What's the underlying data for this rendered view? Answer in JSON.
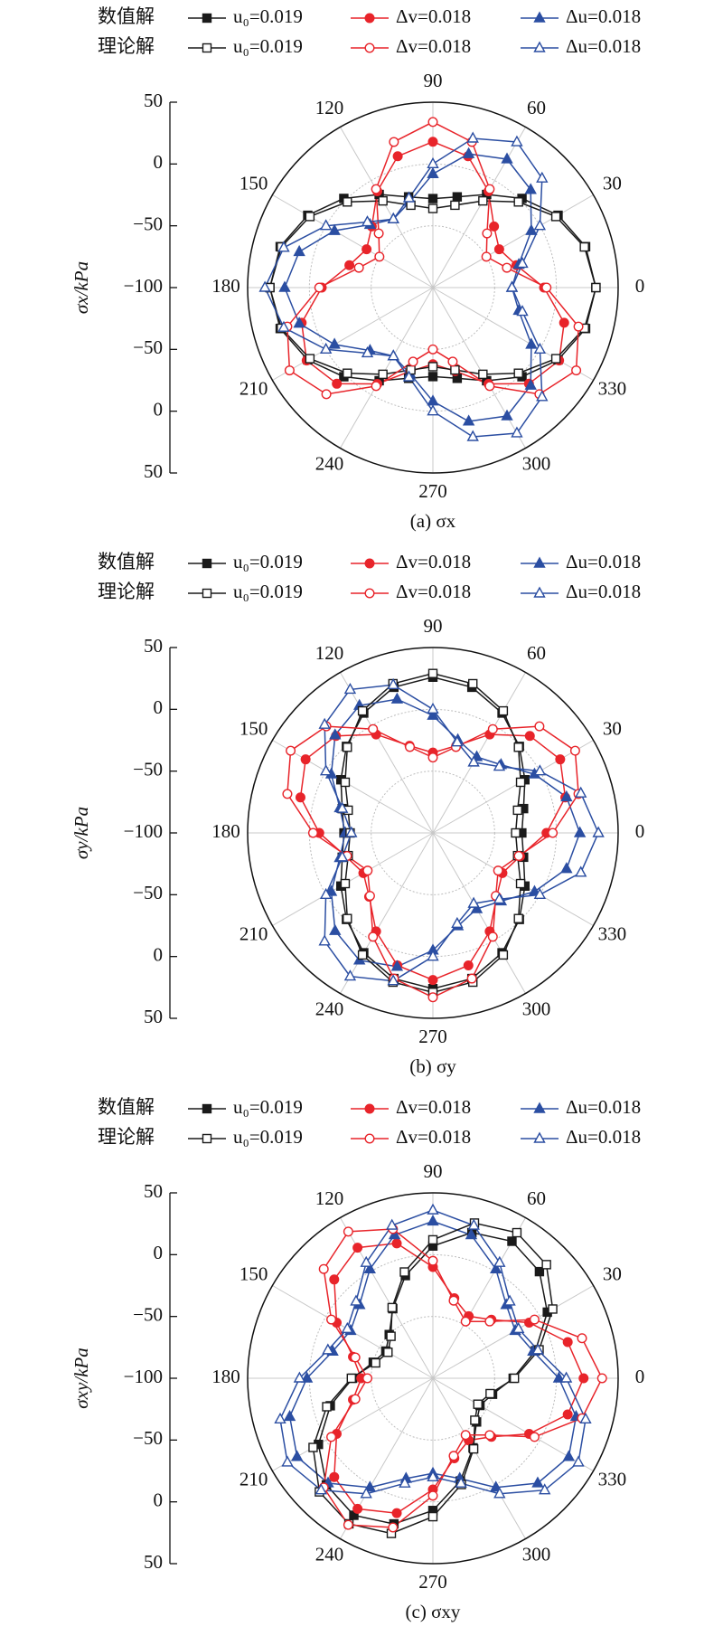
{
  "chart_data": [
    {
      "type": "polar",
      "y_label": "σx/kPa",
      "caption": "(a) σx",
      "legend_groups": [
        "数值解",
        "理论解"
      ],
      "rlim": [
        -100,
        50
      ],
      "rticks": [
        {
          "value": -100,
          "label": "−100"
        },
        {
          "value": -50,
          "label": "−50"
        },
        0,
        50
      ],
      "theta_ticks": [
        0,
        30,
        60,
        90,
        120,
        150,
        180,
        210,
        240,
        270,
        300,
        330
      ],
      "theta": [
        0,
        15,
        30,
        45,
        60,
        75,
        90,
        105,
        120,
        135,
        150,
        165,
        180,
        195,
        210,
        225,
        240,
        255,
        270,
        285,
        300,
        315,
        330,
        345
      ],
      "series": [
        {
          "name": "u₀=0.019",
          "color": "#1a1a1a",
          "marker": "square",
          "filled": true,
          "values": [
            32,
            28,
            17,
            2,
            -13,
            -24,
            -28,
            -24,
            -13,
            2,
            17,
            28,
            32,
            28,
            17,
            2,
            -13,
            -24,
            -28,
            -24,
            -13,
            2,
            17,
            28
          ]
        },
        {
          "name": "Δv=0.018",
          "color": "#e8242a",
          "marker": "circle",
          "filled": true,
          "values": [
            -10,
            -30,
            -38,
            -30,
            -10,
            10,
            18,
            10,
            -10,
            -30,
            -38,
            -30,
            -10,
            10,
            18,
            10,
            -10,
            -30,
            -38,
            -30,
            -10,
            10,
            18,
            10
          ]
        },
        {
          "name": "Δu=0.018",
          "color": "#2b4ea2",
          "marker": "triangle",
          "filled": true,
          "values": [
            -36,
            -28,
            -8,
            12,
            20,
            12,
            -8,
            -28,
            -36,
            -28,
            -8,
            12,
            20,
            12,
            -8,
            -28,
            -36,
            -28,
            -8,
            12,
            20,
            12,
            -8,
            -28
          ]
        },
        {
          "name": "u₀=0.019",
          "color": "#1a1a1a",
          "marker": "square",
          "filled": false,
          "values": [
            32,
            27,
            15,
            -2,
            -19,
            -31,
            -36,
            -31,
            -19,
            -2,
            15,
            27,
            32,
            27,
            15,
            -2,
            -19,
            -31,
            -36,
            -31,
            -19,
            -2,
            15,
            27
          ]
        },
        {
          "name": "Δv=0.018",
          "color": "#e8242a",
          "marker": "circle",
          "filled": false,
          "values": [
            -8,
            -38,
            -50,
            -38,
            -8,
            22,
            34,
            22,
            -8,
            -38,
            -50,
            -38,
            -8,
            22,
            34,
            22,
            -8,
            -38,
            -50,
            -38,
            -8,
            22,
            34,
            22
          ]
        },
        {
          "name": "Δu=0.018",
          "color": "#2b4ea2",
          "marker": "triangle",
          "filled": false,
          "values": [
            -36,
            -25,
            0,
            25,
            36,
            25,
            0,
            -25,
            -36,
            -25,
            0,
            25,
            36,
            25,
            0,
            -25,
            -36,
            -25,
            0,
            25,
            36,
            25,
            0,
            -25
          ]
        }
      ]
    },
    {
      "type": "polar",
      "y_label": "σy/kPa",
      "caption": "(b) σy",
      "legend_groups": [
        "数值解",
        "理论解"
      ],
      "rlim": [
        -100,
        50
      ],
      "rticks": [
        {
          "value": -100,
          "label": "−100"
        },
        {
          "value": -50,
          "label": "−50"
        },
        0,
        50
      ],
      "theta_ticks": [
        0,
        30,
        60,
        90,
        120,
        150,
        180,
        210,
        240,
        270,
        300,
        330
      ],
      "theta": [
        0,
        15,
        30,
        45,
        60,
        75,
        90,
        105,
        120,
        135,
        150,
        165,
        180,
        195,
        210,
        225,
        240,
        255,
        270,
        285,
        300,
        315,
        330,
        345
      ],
      "series": [
        {
          "name": "u₀=0.019",
          "color": "#1a1a1a",
          "marker": "square",
          "filled": true,
          "values": [
            -28,
            -24,
            -14,
            -1,
            12,
            22,
            26,
            22,
            12,
            -1,
            -14,
            -24,
            -28,
            -24,
            -14,
            -1,
            12,
            22,
            26,
            22,
            12,
            -1,
            -14,
            -24
          ]
        },
        {
          "name": "Δv=0.018",
          "color": "#e8242a",
          "marker": "circle",
          "filled": true,
          "values": [
            -8,
            11,
            19,
            11,
            -8,
            -27,
            -35,
            -27,
            -8,
            11,
            19,
            11,
            -8,
            -27,
            -35,
            -27,
            -8,
            11,
            19,
            11,
            -8,
            -27,
            -35,
            -27
          ]
        },
        {
          "name": "Δu=0.018",
          "color": "#2b4ea2",
          "marker": "triangle",
          "filled": true,
          "values": [
            19,
            12,
            -5,
            -22,
            -29,
            -22,
            -5,
            12,
            19,
            12,
            -5,
            -22,
            -29,
            -22,
            -5,
            12,
            19,
            12,
            -5,
            -22,
            -29,
            -22,
            -5,
            12
          ]
        },
        {
          "name": "u₀=0.019",
          "color": "#1a1a1a",
          "marker": "square",
          "filled": false,
          "values": [
            -33,
            -29,
            -18,
            -2,
            14,
            25,
            29,
            25,
            14,
            -2,
            -18,
            -29,
            -33,
            -29,
            -18,
            -2,
            14,
            25,
            29,
            25,
            14,
            -2,
            -18,
            -29
          ]
        },
        {
          "name": "Δv=0.018",
          "color": "#e8242a",
          "marker": "circle",
          "filled": false,
          "values": [
            -3,
            22,
            33,
            22,
            -3,
            -28,
            -39,
            -28,
            -3,
            22,
            33,
            22,
            -3,
            -28,
            -39,
            -28,
            -3,
            22,
            33,
            22,
            -3,
            -28,
            -39,
            -28
          ]
        },
        {
          "name": "Δu=0.018",
          "color": "#2b4ea2",
          "marker": "triangle",
          "filled": false,
          "values": [
            34,
            24,
            0,
            -24,
            -34,
            -24,
            0,
            24,
            34,
            24,
            0,
            -24,
            -34,
            -24,
            0,
            24,
            34,
            24,
            0,
            -24,
            -34,
            -24,
            0,
            24
          ]
        }
      ]
    },
    {
      "type": "polar",
      "y_label": "σxy/kPa",
      "caption": "(c) σxy",
      "legend_groups": [
        "数值解",
        "理论解"
      ],
      "rlim": [
        -100,
        50
      ],
      "rticks": [
        {
          "value": -100,
          "label": "−100"
        },
        {
          "value": -50,
          "label": "−50"
        },
        0,
        50
      ],
      "theta_ticks": [
        0,
        30,
        60,
        90,
        120,
        150,
        180,
        210,
        240,
        270,
        300,
        330
      ],
      "theta": [
        0,
        15,
        30,
        45,
        60,
        75,
        90,
        105,
        120,
        135,
        150,
        165,
        180,
        195,
        210,
        225,
        240,
        255,
        270,
        285,
        300,
        315,
        330,
        345
      ],
      "series": [
        {
          "name": "u₀=0.019",
          "color": "#1a1a1a",
          "marker": "square",
          "filled": true,
          "values": [
            -35,
            -14,
            7,
            22,
            28,
            22,
            7,
            -14,
            -35,
            -50,
            -56,
            -50,
            -35,
            -14,
            7,
            22,
            28,
            22,
            7,
            -14,
            -35,
            -50,
            -56,
            -50
          ]
        },
        {
          "name": "Δv=0.018",
          "color": "#e8242a",
          "marker": "circle",
          "filled": true,
          "values": [
            22,
            13,
            -10,
            -33,
            -42,
            -33,
            -10,
            13,
            22,
            13,
            -10,
            -33,
            -42,
            -33,
            -10,
            13,
            22,
            13,
            -10,
            -33,
            -42,
            -33,
            -10,
            13
          ]
        },
        {
          "name": "Δu=0.018",
          "color": "#2b4ea2",
          "marker": "triangle",
          "filled": true,
          "values": [
            2,
            -16,
            -23,
            -16,
            2,
            20,
            27,
            20,
            2,
            -16,
            -23,
            -16,
            2,
            20,
            27,
            20,
            2,
            -16,
            -23,
            -16,
            2,
            20,
            27,
            20
          ]
        },
        {
          "name": "u₀=0.019",
          "color": "#1a1a1a",
          "marker": "square",
          "filled": false,
          "values": [
            -34,
            -11,
            12,
            30,
            36,
            30,
            12,
            -11,
            -34,
            -52,
            -58,
            -52,
            -34,
            -11,
            12,
            30,
            36,
            30,
            12,
            -11,
            -34,
            -52,
            -58,
            -52
          ]
        },
        {
          "name": "Δv=0.018",
          "color": "#e8242a",
          "marker": "circle",
          "filled": false,
          "values": [
            37,
            25,
            -5,
            -35,
            -47,
            -35,
            -5,
            25,
            37,
            25,
            -5,
            -35,
            -47,
            -35,
            -5,
            25,
            37,
            25,
            -5,
            -35,
            -47,
            -35,
            -5,
            25
          ]
        },
        {
          "name": "Δu=0.018",
          "color": "#2b4ea2",
          "marker": "triangle",
          "filled": false,
          "values": [
            8,
            -12,
            -20,
            -12,
            8,
            28,
            36,
            28,
            8,
            -12,
            -20,
            -12,
            8,
            28,
            36,
            28,
            8,
            -12,
            -20,
            -12,
            8,
            28,
            36,
            28
          ]
        }
      ]
    }
  ]
}
